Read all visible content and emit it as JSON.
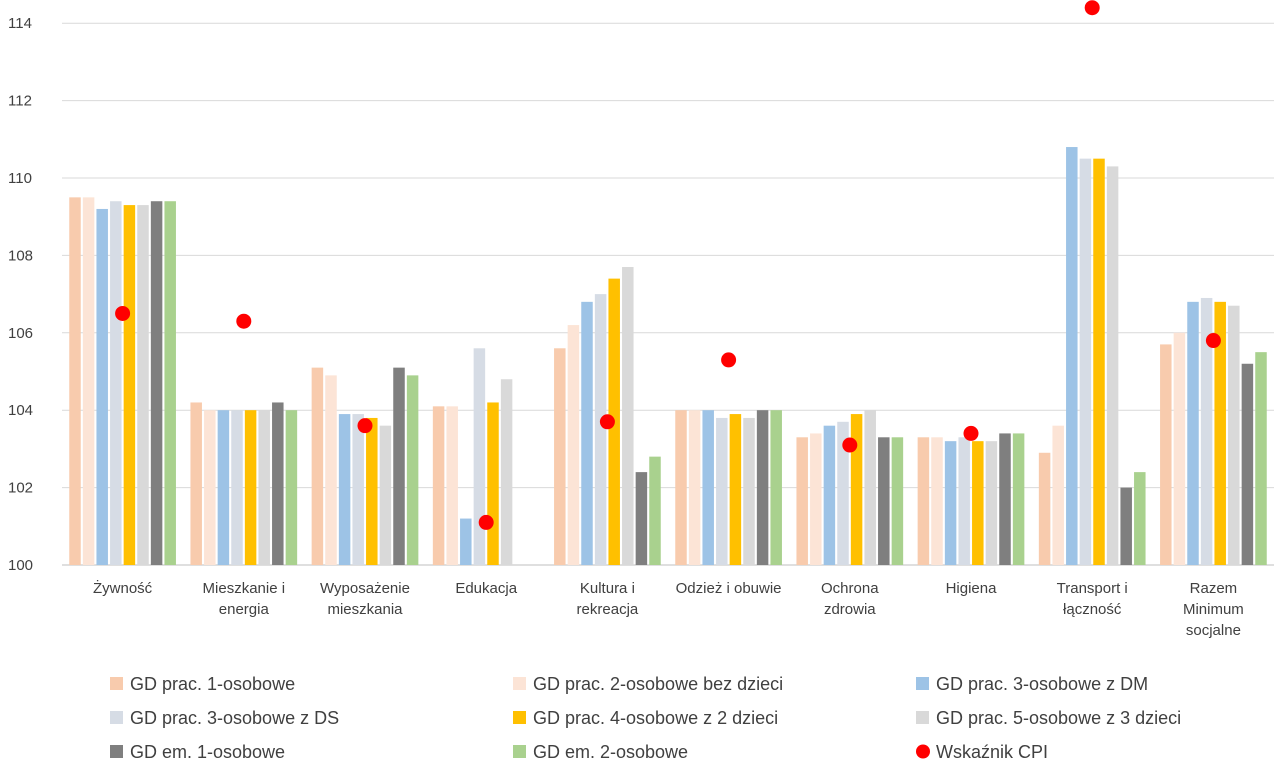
{
  "chart_data": {
    "type": "bar",
    "title": "",
    "xlabel": "",
    "ylabel": "",
    "ylim": [
      100,
      114.5
    ],
    "yticks": [
      100,
      102,
      104,
      106,
      108,
      110,
      112,
      114
    ],
    "grid": true,
    "legend_position": "bottom",
    "categories": [
      [
        "Żywność"
      ],
      [
        "Mieszkanie i",
        "energia"
      ],
      [
        "Wyposażenie",
        "mieszkania"
      ],
      [
        "Edukacja"
      ],
      [
        "Kultura i",
        "rekreacja"
      ],
      [
        "Odzież i obuwie"
      ],
      [
        "Ochrona",
        "zdrowia"
      ],
      [
        "Higiena"
      ],
      [
        "Transport i",
        "łączność"
      ],
      [
        "Razem",
        "Minimum",
        "socjalne"
      ]
    ],
    "series": [
      {
        "name": "GD prac. 1-osobowe",
        "color": "#F8CBAD",
        "values": [
          109.5,
          104.2,
          105.1,
          104.1,
          105.6,
          104.0,
          103.3,
          103.3,
          102.9,
          105.7
        ]
      },
      {
        "name": "GD prac. 2-osobowe bez dzieci",
        "color": "#FCE4D6",
        "values": [
          109.5,
          104.0,
          104.9,
          104.1,
          106.2,
          104.0,
          103.4,
          103.3,
          103.6,
          106.0
        ]
      },
      {
        "name": "GD prac. 3-osobowe z DM",
        "color": "#9DC3E6",
        "values": [
          109.2,
          104.0,
          103.9,
          101.2,
          106.8,
          104.0,
          103.6,
          103.2,
          110.8,
          106.8
        ]
      },
      {
        "name": "GD prac. 3-osobowe z DS",
        "color": "#D6DCE5",
        "values": [
          109.4,
          104.0,
          103.9,
          105.6,
          107.0,
          103.8,
          103.7,
          103.3,
          110.5,
          106.9
        ]
      },
      {
        "name": "GD prac. 4-osobowe z 2 dzieci",
        "color": "#FFC000",
        "values": [
          109.3,
          104.0,
          103.8,
          104.2,
          107.4,
          103.9,
          103.9,
          103.2,
          110.5,
          106.8
        ]
      },
      {
        "name": "GD prac. 5-osobowe z 3 dzieci",
        "color": "#D9D9D9",
        "values": [
          109.3,
          104.0,
          103.6,
          104.8,
          107.7,
          103.8,
          104.0,
          103.2,
          110.3,
          106.7
        ]
      },
      {
        "name": "GD em. 1-osobowe",
        "color": "#7F7F7F",
        "values": [
          109.4,
          104.2,
          105.1,
          null,
          102.4,
          104.0,
          103.3,
          103.4,
          102.0,
          105.2
        ]
      },
      {
        "name": "GD em. 2-osobowe",
        "color": "#A9D18E",
        "values": [
          109.4,
          104.0,
          104.9,
          null,
          102.8,
          104.0,
          103.3,
          103.4,
          102.4,
          105.5
        ]
      }
    ],
    "cpi": {
      "name": "Wskaźnik CPI",
      "color": "#FF0000",
      "values": [
        106.5,
        106.3,
        103.6,
        101.1,
        103.7,
        105.3,
        103.1,
        103.4,
        114.4,
        105.8
      ]
    }
  }
}
